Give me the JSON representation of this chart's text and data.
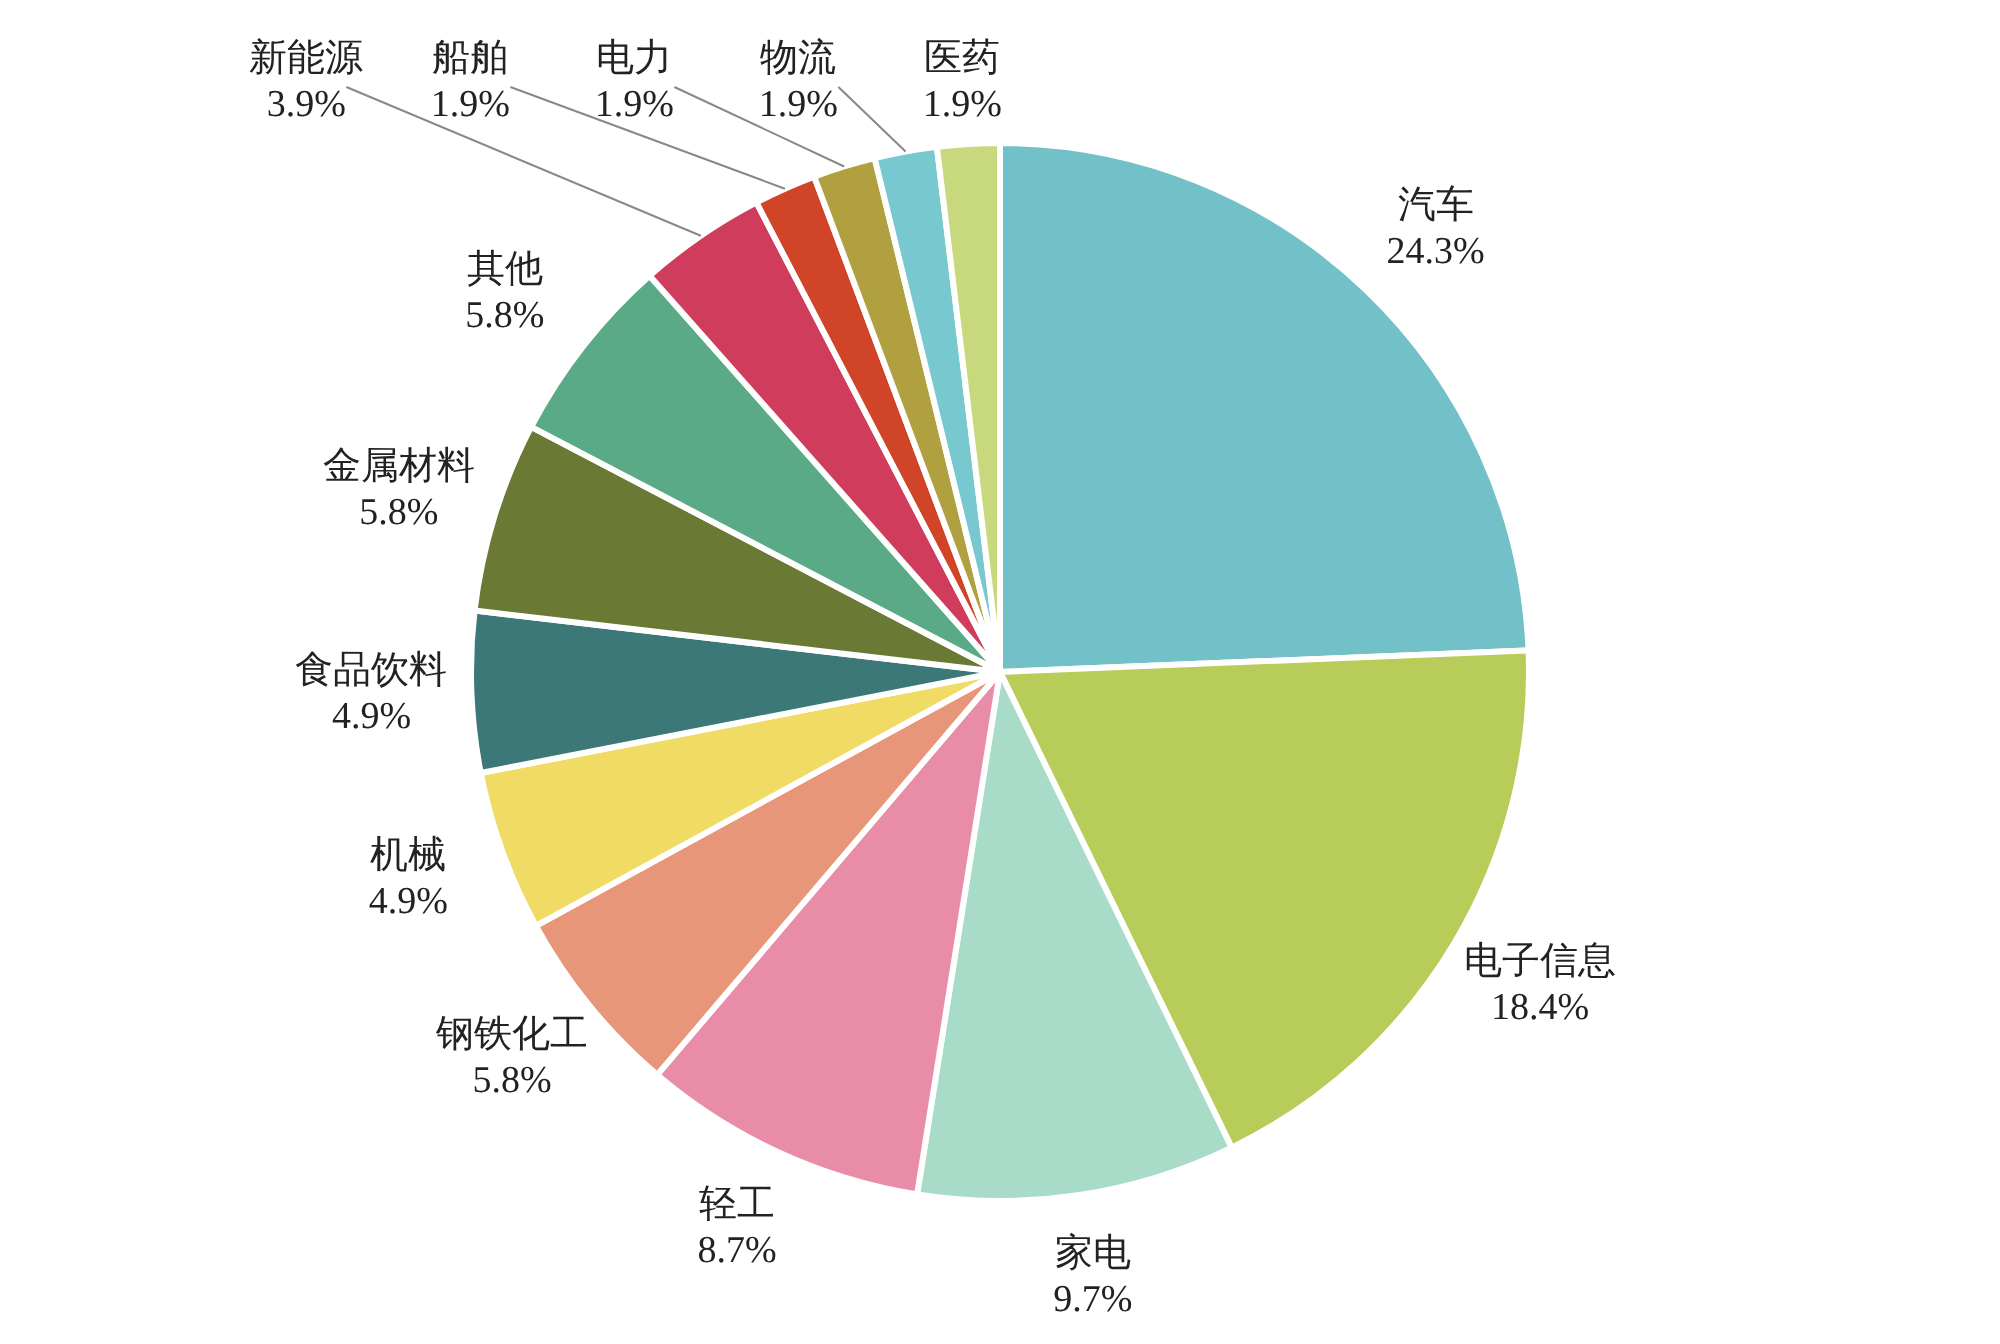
{
  "chart_data": {
    "type": "pie",
    "categories": [
      "汽车",
      "电子信息",
      "家电",
      "轻工",
      "钢铁化工",
      "机械",
      "食品饮料",
      "金属材料",
      "其他",
      "新能源",
      "船舶",
      "电力",
      "物流",
      "医药"
    ],
    "values": [
      24.3,
      18.4,
      9.7,
      8.7,
      5.8,
      4.9,
      4.9,
      5.8,
      5.8,
      3.9,
      1.9,
      1.9,
      1.9,
      1.9
    ],
    "colors": [
      "#72c0c8",
      "#b8cc5a",
      "#a8dcc8",
      "#e88ca8",
      "#e8967a",
      "#f0dc64",
      "#3c7878",
      "#6a7a34",
      "#5aaa88",
      "#d03c5c",
      "#d04428",
      "#b0a040",
      "#78c8d0",
      "#c8d87c"
    ],
    "value_labels": [
      "24.3%",
      "18.4%",
      "9.7%",
      "8.7%",
      "5.8%",
      "4.9%",
      "4.9%",
      "5.8%",
      "5.8%",
      "3.9%",
      "1.9%",
      "1.9%",
      "1.9%",
      "1.9%"
    ],
    "legend": false
  }
}
